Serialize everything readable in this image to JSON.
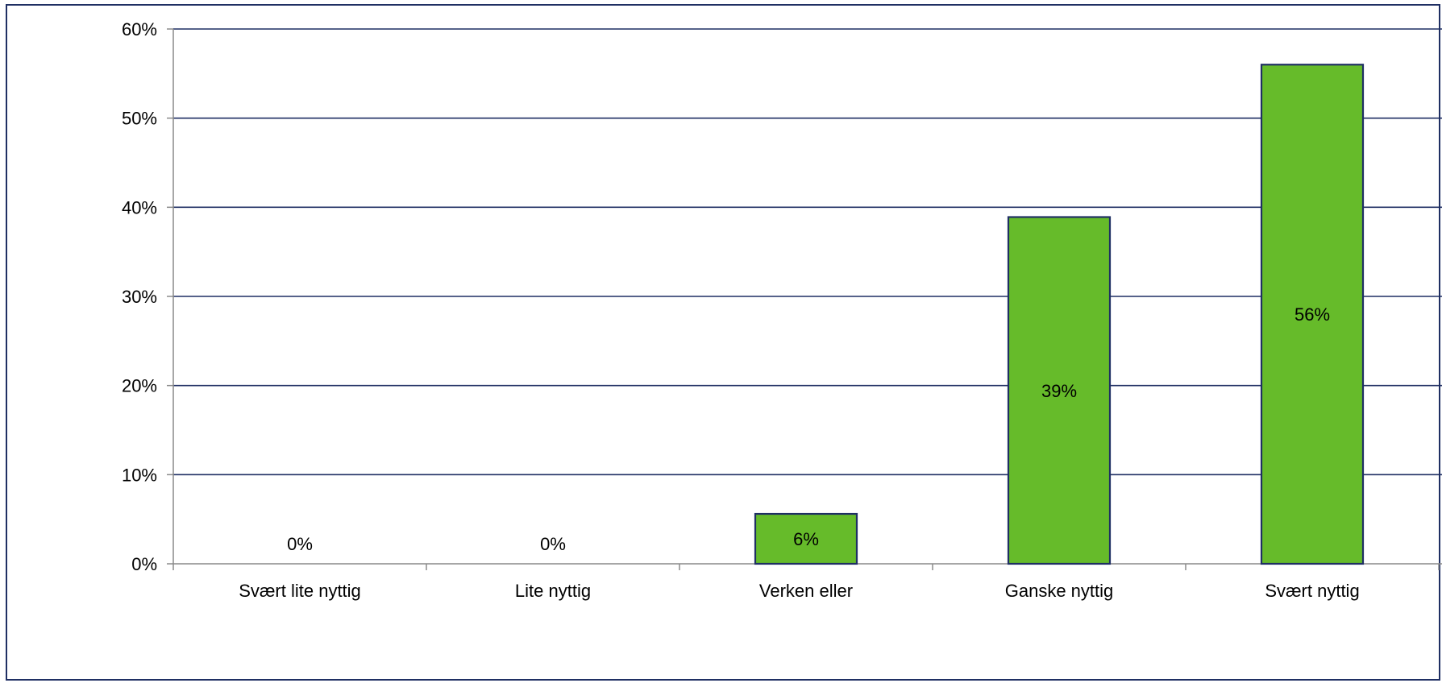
{
  "chart_data": {
    "type": "bar",
    "categories": [
      "Svært lite nyttig",
      "Lite nyttig",
      "Verken eller",
      "Ganske nyttig",
      "Svært nyttig"
    ],
    "values": [
      0,
      0,
      5.6,
      38.9,
      56.0
    ],
    "data_labels": [
      "0%",
      "0%",
      "6%",
      "39%",
      "56%"
    ],
    "y_ticks": [
      0,
      10,
      20,
      30,
      40,
      50,
      60
    ],
    "y_tick_labels": [
      "0%",
      "10%",
      "20%",
      "30%",
      "40%",
      "50%",
      "60%"
    ],
    "ylim": [
      0,
      60
    ],
    "title": "",
    "xlabel": "",
    "ylabel": "",
    "grid": true,
    "legend": "none",
    "colors": {
      "bar_fill": "#66bb2a",
      "bar_stroke": "#1f2f63",
      "gridline": "#1f2f63",
      "axis": "#8a8a8a",
      "frame": "#1f2f63"
    }
  }
}
